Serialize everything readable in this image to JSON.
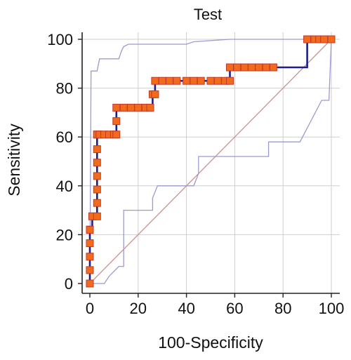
{
  "chart_data": {
    "type": "line",
    "title": "Test",
    "xlabel": "100-Specificity",
    "ylabel": "Sensitivity",
    "xlim": [
      0,
      100
    ],
    "ylim": [
      0,
      100
    ],
    "xticks": [
      "0",
      "20",
      "40",
      "60",
      "80",
      "100"
    ],
    "yticks": [
      "0",
      "20",
      "40",
      "60",
      "80",
      "100"
    ],
    "grid": true,
    "legend": "none",
    "colors": {
      "roc_line": "#1f1f8c",
      "marker_fill": "#f26a1b",
      "marker_edge": "#c0392b",
      "ci_band": "#9b9bd0",
      "diagonal": "#c8948f",
      "grid": "#cfcfcf",
      "axis": "#222222"
    },
    "series": [
      {
        "role": "roc-curve",
        "x": [
          0,
          0,
          0,
          0,
          0,
          0,
          0,
          0,
          1,
          3,
          3,
          3,
          3,
          3,
          3,
          3,
          3,
          4,
          6,
          8,
          10,
          11,
          11,
          11,
          14,
          17,
          20,
          23,
          25,
          26,
          27,
          27,
          30,
          33,
          36,
          40,
          43,
          46,
          50,
          53,
          56,
          58,
          58,
          61,
          64,
          67,
          70,
          73,
          76,
          90,
          93,
          95,
          97,
          100
        ],
        "y": [
          0,
          5.5,
          11,
          16.5,
          22,
          22,
          22,
          22,
          27.5,
          27.5,
          33,
          38.5,
          44,
          49.5,
          55,
          61,
          61,
          61,
          61,
          61,
          61,
          61,
          66.5,
          72,
          72,
          72,
          72,
          72,
          72,
          77.5,
          77.5,
          83,
          83,
          83,
          83,
          83,
          83,
          83,
          83,
          83,
          83,
          83,
          88.5,
          88.5,
          88.5,
          88.5,
          88.5,
          88.5,
          88.5,
          100,
          100,
          100,
          100,
          100
        ]
      },
      {
        "role": "ci-upper",
        "x": [
          0,
          0.5,
          1,
          3,
          4,
          5,
          12,
          13,
          14,
          16,
          40,
          43,
          58,
          70,
          76,
          90,
          100
        ],
        "y": [
          0,
          87,
          87,
          87,
          92,
          92,
          92,
          95,
          97,
          98,
          98,
          99,
          100,
          100,
          100,
          100,
          100
        ]
      },
      {
        "role": "ci-lower",
        "x": [
          0,
          6,
          8,
          10,
          12,
          14,
          14,
          26,
          26,
          28,
          30,
          35,
          43,
          45,
          45,
          58,
          58,
          74,
          74,
          87,
          96,
          99,
          99,
          100
        ],
        "y": [
          0,
          0,
          3,
          5,
          7,
          7,
          30,
          30,
          35,
          40,
          40,
          40,
          40,
          45,
          52,
          52,
          52,
          52,
          58,
          58,
          75,
          75,
          75,
          100
        ]
      }
    ]
  }
}
